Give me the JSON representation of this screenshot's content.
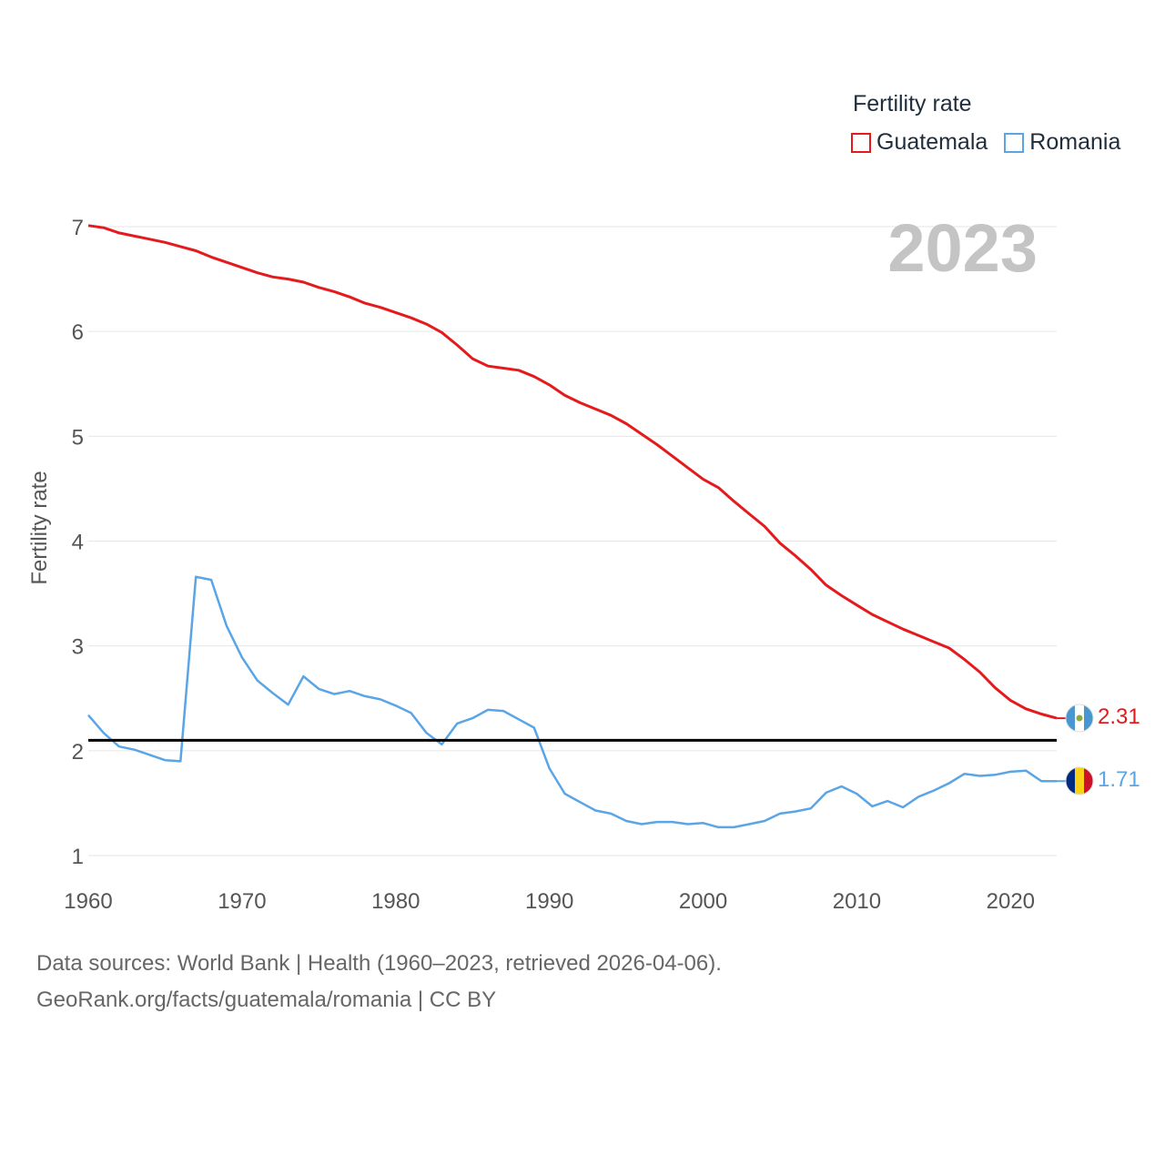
{
  "legend": {
    "title": "Fertility rate",
    "items": [
      {
        "label": "Guatemala",
        "color": "#e41a1c"
      },
      {
        "label": "Romania",
        "color": "#5aa5e6"
      }
    ]
  },
  "year_watermark": "2023",
  "footer": {
    "line1": "Data sources: World Bank | Health (1960–2023, retrieved 2026-04-06).",
    "line2": "GeoRank.org/facts/guatemala/romania | CC BY"
  },
  "chart_data": {
    "type": "line",
    "ylabel": "Fertility rate",
    "xlabel": "",
    "xlim": [
      1960,
      2023
    ],
    "ylim": [
      1,
      7
    ],
    "x_ticks": [
      1960,
      1970,
      1980,
      1990,
      2000,
      2010,
      2020
    ],
    "y_ticks": [
      1,
      2,
      3,
      4,
      5,
      6,
      7
    ],
    "reference_line": {
      "y": 2.1,
      "color": "#000000"
    },
    "x": [
      1960,
      1961,
      1962,
      1963,
      1964,
      1965,
      1966,
      1967,
      1968,
      1969,
      1970,
      1971,
      1972,
      1973,
      1974,
      1975,
      1976,
      1977,
      1978,
      1979,
      1980,
      1981,
      1982,
      1983,
      1984,
      1985,
      1986,
      1987,
      1988,
      1989,
      1990,
      1991,
      1992,
      1993,
      1994,
      1995,
      1996,
      1997,
      1998,
      1999,
      2000,
      2001,
      2002,
      2003,
      2004,
      2005,
      2006,
      2007,
      2008,
      2009,
      2010,
      2011,
      2012,
      2013,
      2014,
      2015,
      2016,
      2017,
      2018,
      2019,
      2020,
      2021,
      2022,
      2023
    ],
    "series": [
      {
        "name": "Guatemala",
        "color": "#e41a1c",
        "end_label": "2.31",
        "values": [
          7.01,
          6.99,
          6.94,
          6.91,
          6.88,
          6.85,
          6.81,
          6.77,
          6.71,
          6.66,
          6.61,
          6.56,
          6.52,
          6.5,
          6.47,
          6.42,
          6.38,
          6.33,
          6.27,
          6.23,
          6.18,
          6.13,
          6.07,
          5.99,
          5.87,
          5.74,
          5.67,
          5.65,
          5.63,
          5.57,
          5.49,
          5.39,
          5.32,
          5.26,
          5.2,
          5.12,
          5.02,
          4.92,
          4.81,
          4.7,
          4.59,
          4.51,
          4.38,
          4.26,
          4.14,
          3.98,
          3.86,
          3.73,
          3.58,
          3.48,
          3.39,
          3.3,
          3.23,
          3.16,
          3.1,
          3.04,
          2.98,
          2.87,
          2.75,
          2.6,
          2.48,
          2.4,
          2.35,
          2.31
        ]
      },
      {
        "name": "Romania",
        "color": "#5aa5e6",
        "end_label": "1.71",
        "values": [
          2.34,
          2.17,
          2.04,
          2.01,
          1.96,
          1.91,
          1.9,
          3.66,
          3.63,
          3.19,
          2.89,
          2.67,
          2.55,
          2.44,
          2.71,
          2.59,
          2.54,
          2.57,
          2.52,
          2.49,
          2.43,
          2.36,
          2.17,
          2.06,
          2.26,
          2.31,
          2.39,
          2.38,
          2.3,
          2.22,
          1.83,
          1.59,
          1.51,
          1.43,
          1.4,
          1.33,
          1.3,
          1.32,
          1.32,
          1.3,
          1.31,
          1.27,
          1.27,
          1.3,
          1.33,
          1.4,
          1.42,
          1.45,
          1.6,
          1.66,
          1.59,
          1.47,
          1.52,
          1.46,
          1.56,
          1.62,
          1.69,
          1.78,
          1.76,
          1.77,
          1.8,
          1.81,
          1.71,
          1.71
        ]
      }
    ]
  }
}
